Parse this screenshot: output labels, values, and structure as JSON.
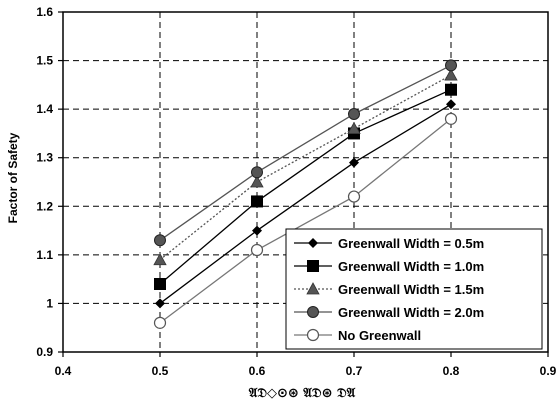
{
  "chart_data": {
    "type": "line",
    "title": "",
    "ylabel": "Factor of Safety",
    "xlabel": "𝔄𝔇◇⊙⊛ 𝔄𝔇⊛ 𝔇𝔄",
    "xlim": [
      0.4,
      0.9
    ],
    "ylim": [
      0.9,
      1.6
    ],
    "xticks": [
      "0.4",
      "0.5",
      "0.6",
      "0.7",
      "0.8",
      "0.9"
    ],
    "yticks": [
      "0.9",
      "1",
      "1.1",
      "1.2",
      "1.3",
      "1.4",
      "1.5",
      "1.6"
    ],
    "grid": "dashed",
    "legend_position": "bottom-right",
    "x": [
      0.5,
      0.6,
      0.7,
      0.8
    ],
    "series": [
      {
        "name": "Greenwall Width = 0.5m",
        "marker": "diamond",
        "line": "solid",
        "color": "#000000",
        "values": [
          1.0,
          1.15,
          1.29,
          1.41
        ]
      },
      {
        "name": "Greenwall Width = 1.0m",
        "marker": "square",
        "line": "solid",
        "color": "#000000",
        "values": [
          1.04,
          1.21,
          1.35,
          1.44
        ]
      },
      {
        "name": "Greenwall Width = 1.5m",
        "marker": "triangle",
        "line": "dotted",
        "color": "#555555",
        "values": [
          1.09,
          1.25,
          1.36,
          1.47
        ]
      },
      {
        "name": "Greenwall Width = 2.0m",
        "marker": "circle",
        "line": "solid",
        "color": "#555555",
        "values": [
          1.13,
          1.27,
          1.39,
          1.49
        ]
      },
      {
        "name": "No Greenwall",
        "marker": "open-circle",
        "line": "solid",
        "color": "#777777",
        "values": [
          0.96,
          1.11,
          1.22,
          1.38
        ]
      }
    ]
  }
}
